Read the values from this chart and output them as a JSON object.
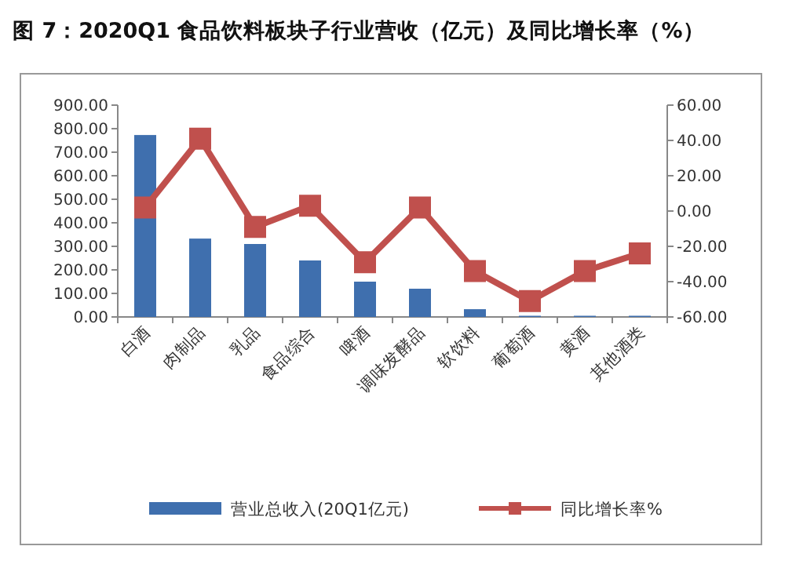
{
  "chart_data": {
    "type": "bar",
    "title": "图 7：2020Q1 食品饮料板块子行业营收（亿元）及同比增长率（%）",
    "categories": [
      "白酒",
      "肉制品",
      "乳品",
      "食品综合",
      "啤酒",
      "调味发酵品",
      "软饮料",
      "葡萄酒",
      "黄酒",
      "其他酒类"
    ],
    "series": [
      {
        "name": "营业总收入(20Q1亿元)",
        "color": "#3f6fae",
        "values": [
          773,
          333,
          310,
          240,
          150,
          120,
          33,
          5,
          5,
          5
        ]
      },
      {
        "name": "同比增长率%",
        "type": "line",
        "axis": "y2",
        "color": "#c0504d",
        "marker": "square",
        "values": [
          2,
          41,
          -9,
          3,
          -29,
          2,
          -34,
          -51,
          -34,
          -24
        ]
      }
    ],
    "ylim": [
      0,
      900
    ],
    "yticks": [
      {
        "value": 0,
        "label": "0.00"
      },
      {
        "value": 100,
        "label": "100.00"
      },
      {
        "value": 200,
        "label": "200.00"
      },
      {
        "value": 300,
        "label": "300.00"
      },
      {
        "value": 400,
        "label": "400.00"
      },
      {
        "value": 500,
        "label": "500.00"
      },
      {
        "value": 600,
        "label": "600.00"
      },
      {
        "value": 700,
        "label": "700.00"
      },
      {
        "value": 800,
        "label": "800.00"
      },
      {
        "value": 900,
        "label": "900.00"
      }
    ],
    "y2lim": [
      -60,
      60
    ],
    "y2ticks": [
      {
        "value": -60,
        "label": "-60.00"
      },
      {
        "value": -40,
        "label": "-40.00"
      },
      {
        "value": -20,
        "label": "-20.00"
      },
      {
        "value": 0,
        "label": "0.00"
      },
      {
        "value": 20,
        "label": "20.00"
      },
      {
        "value": 40,
        "label": "40.00"
      },
      {
        "value": 60,
        "label": "60.00"
      }
    ],
    "legend": "bottom",
    "grid": false
  }
}
